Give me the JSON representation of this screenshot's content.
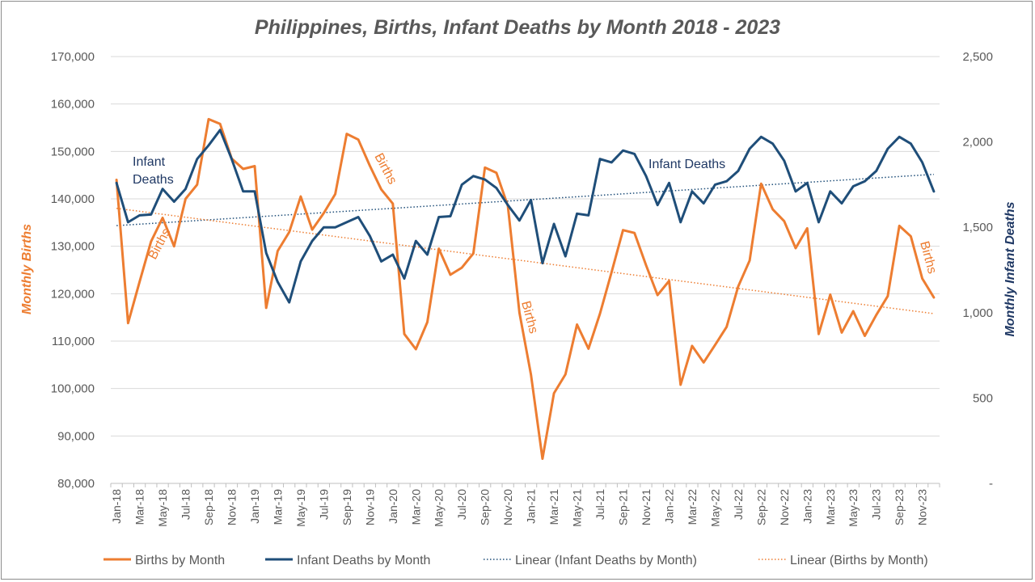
{
  "chart_data": {
    "type": "line",
    "title": "Philippines, Births, Infant Deaths by Month 2018 - 2023",
    "ylabel_left": "Monthly Births",
    "ylabel_right": "Monthly Infant Deaths",
    "ylim_left": [
      80000,
      170000
    ],
    "ylim_right": [
      0,
      2500
    ],
    "left_ticks": [
      "80,000",
      "90,000",
      "100,000",
      "110,000",
      "120,000",
      "130,000",
      "140,000",
      "150,000",
      "160,000",
      "170,000"
    ],
    "right_ticks": [
      "-",
      "500",
      "1,000",
      "1,500",
      "2,000",
      "2,500"
    ],
    "x_tick_labels": [
      "Jan-18",
      "Mar-18",
      "May-18",
      "Jul-18",
      "Sep-18",
      "Nov-18",
      "Jan-19",
      "Mar-19",
      "May-19",
      "Jul-19",
      "Sep-19",
      "Nov-19",
      "Jan-20",
      "Mar-20",
      "May-20",
      "Jul-20",
      "Sep-20",
      "Nov-20",
      "Jan-21",
      "Mar-21",
      "May-21",
      "Jul-21",
      "Sep-21",
      "Nov-21",
      "Jan-22",
      "Mar-22",
      "May-22",
      "Jul-22",
      "Sep-22",
      "Nov-22",
      "Jan-23",
      "Mar-23",
      "May-23",
      "Jul-23",
      "Sep-23",
      "Nov-23"
    ],
    "grid": true,
    "legend_position": "bottom",
    "series": [
      {
        "name": "Births by Month",
        "axis": "left",
        "color": "#ED7D31",
        "style": "solid",
        "values": [
          144000,
          113800,
          122500,
          131000,
          136000,
          130000,
          140000,
          143000,
          156800,
          155800,
          148500,
          146300,
          146900,
          117000,
          129000,
          133000,
          140500,
          133500,
          137000,
          141000,
          153700,
          152500,
          147000,
          142000,
          139000,
          111500,
          108300,
          114000,
          129500,
          124000,
          125500,
          128500,
          146600,
          145500,
          138500,
          116000,
          103000,
          85200,
          99000,
          103000,
          113500,
          108400,
          115800,
          124500,
          133400,
          132800,
          126000,
          119700,
          122700,
          100800,
          109000,
          105500,
          109200,
          113000,
          121500,
          127000,
          143200,
          137800,
          135300,
          129600,
          133800,
          111500,
          119800,
          111800,
          116300,
          111100,
          115500,
          119500,
          134300,
          132100,
          123200,
          119200
        ]
      },
      {
        "name": "Infant Deaths by Month",
        "axis": "right",
        "color": "#1F4E79",
        "style": "solid",
        "values": [
          1760,
          1530,
          1570,
          1575,
          1725,
          1650,
          1725,
          1900,
          1980,
          2070,
          1900,
          1710,
          1710,
          1350,
          1180,
          1060,
          1300,
          1420,
          1500,
          1500,
          1530,
          1560,
          1450,
          1300,
          1340,
          1200,
          1420,
          1340,
          1560,
          1565,
          1750,
          1800,
          1780,
          1730,
          1630,
          1540,
          1660,
          1290,
          1520,
          1330,
          1580,
          1570,
          1900,
          1880,
          1950,
          1930,
          1800,
          1630,
          1760,
          1530,
          1710,
          1640,
          1750,
          1770,
          1830,
          1960,
          2030,
          1990,
          1890,
          1710,
          1760,
          1530,
          1710,
          1640,
          1740,
          1770,
          1830,
          1960,
          2030,
          1990,
          1880,
          1710
        ]
      },
      {
        "name": "Linear (Infant Deaths by Month)",
        "axis": "right",
        "color": "#1F4E79",
        "style": "dotted",
        "values": [
          1510,
          1810
        ]
      },
      {
        "name": "Linear (Births by Month)",
        "axis": "left",
        "color": "#ED7D31",
        "style": "dotted",
        "values": [
          138000,
          115800
        ]
      }
    ],
    "annotations": {
      "births_1": "Births",
      "births_2": "Births",
      "births_3": "Births",
      "births_4": "Births",
      "deaths_1_line1": "Infant",
      "deaths_1_line2": "Deaths",
      "deaths_2": "Infant Deaths"
    }
  }
}
